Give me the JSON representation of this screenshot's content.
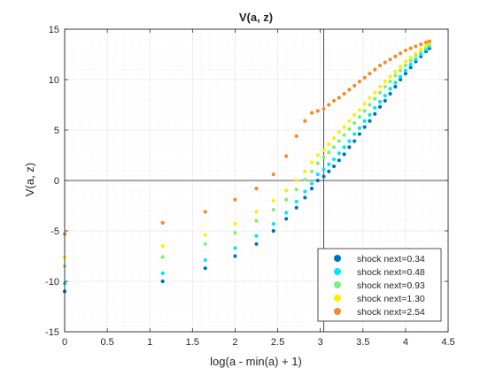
{
  "chart_data": {
    "type": "scatter",
    "title": "V(a, z)",
    "xlabel": "log(a - min(a) + 1)",
    "ylabel": "V(a, z)",
    "xlim": [
      0,
      4.5
    ],
    "ylim": [
      -15,
      15
    ],
    "x_ticks": [
      "0",
      "0.5",
      "1",
      "1.5",
      "2",
      "2.5",
      "3",
      "3.5",
      "4",
      "4.5"
    ],
    "y_ticks": [
      "-15",
      "-10",
      "-5",
      "0",
      "5",
      "10",
      "15"
    ],
    "grid": "major and minor (dotted)",
    "reference_lines": {
      "x": 3.04,
      "y": 0
    },
    "legend_placement": "bottom-right",
    "series": [
      {
        "name": "shock next=0.34",
        "color": "#0072BD",
        "points": [
          [
            0,
            -11.0
          ],
          [
            1.15,
            -10.0
          ],
          [
            1.65,
            -8.7
          ],
          [
            2.0,
            -7.5
          ],
          [
            2.25,
            -6.3
          ],
          [
            2.45,
            -5.0
          ],
          [
            2.6,
            -3.8
          ],
          [
            2.72,
            -2.7
          ],
          [
            2.82,
            -1.7
          ],
          [
            2.9,
            -0.8
          ],
          [
            2.97,
            0.0
          ],
          [
            3.04,
            0.4
          ],
          [
            3.1,
            0.9
          ],
          [
            3.16,
            1.4
          ],
          [
            3.22,
            2.0
          ],
          [
            3.28,
            2.6
          ],
          [
            3.34,
            3.3
          ],
          [
            3.4,
            3.9
          ],
          [
            3.46,
            4.6
          ],
          [
            3.52,
            5.3
          ],
          [
            3.58,
            5.9
          ],
          [
            3.64,
            6.6
          ],
          [
            3.7,
            7.3
          ],
          [
            3.76,
            7.9
          ],
          [
            3.82,
            8.6
          ],
          [
            3.88,
            9.3
          ],
          [
            3.94,
            10.0
          ],
          [
            4.0,
            10.6
          ],
          [
            4.06,
            11.2
          ],
          [
            4.12,
            11.8
          ],
          [
            4.18,
            12.3
          ],
          [
            4.24,
            12.8
          ],
          [
            4.28,
            13.1
          ]
        ]
      },
      {
        "name": "shock next=0.48",
        "color": "#00E5FF",
        "points": [
          [
            0,
            -10.2
          ],
          [
            1.15,
            -9.2
          ],
          [
            1.65,
            -7.9
          ],
          [
            2.0,
            -6.7
          ],
          [
            2.25,
            -5.5
          ],
          [
            2.45,
            -4.3
          ],
          [
            2.6,
            -3.2
          ],
          [
            2.72,
            -2.1
          ],
          [
            2.82,
            -1.1
          ],
          [
            2.9,
            -0.3
          ],
          [
            2.97,
            0.6
          ],
          [
            3.04,
            1.1
          ],
          [
            3.1,
            1.6
          ],
          [
            3.16,
            2.1
          ],
          [
            3.22,
            2.7
          ],
          [
            3.28,
            3.3
          ],
          [
            3.34,
            3.9
          ],
          [
            3.4,
            4.6
          ],
          [
            3.46,
            5.2
          ],
          [
            3.52,
            5.9
          ],
          [
            3.58,
            6.5
          ],
          [
            3.64,
            7.2
          ],
          [
            3.7,
            7.8
          ],
          [
            3.76,
            8.4
          ],
          [
            3.82,
            9.1
          ],
          [
            3.88,
            9.7
          ],
          [
            3.94,
            10.3
          ],
          [
            4.0,
            10.9
          ],
          [
            4.06,
            11.5
          ],
          [
            4.12,
            12.0
          ],
          [
            4.18,
            12.5
          ],
          [
            4.24,
            13.0
          ],
          [
            4.28,
            13.3
          ]
        ]
      },
      {
        "name": "shock next=0.93",
        "color": "#7CF07C",
        "points": [
          [
            0,
            -8.5
          ],
          [
            1.15,
            -7.6
          ],
          [
            1.65,
            -6.3
          ],
          [
            2.0,
            -5.2
          ],
          [
            2.25,
            -4.0
          ],
          [
            2.45,
            -2.9
          ],
          [
            2.6,
            -1.9
          ],
          [
            2.72,
            -0.9
          ],
          [
            2.82,
            0.1
          ],
          [
            2.9,
            0.9
          ],
          [
            2.97,
            1.7
          ],
          [
            3.04,
            2.3
          ],
          [
            3.1,
            2.8
          ],
          [
            3.16,
            3.3
          ],
          [
            3.22,
            3.9
          ],
          [
            3.28,
            4.5
          ],
          [
            3.34,
            5.1
          ],
          [
            3.4,
            5.7
          ],
          [
            3.46,
            6.3
          ],
          [
            3.52,
            6.9
          ],
          [
            3.58,
            7.5
          ],
          [
            3.64,
            8.1
          ],
          [
            3.7,
            8.7
          ],
          [
            3.76,
            9.3
          ],
          [
            3.82,
            9.8
          ],
          [
            3.88,
            10.4
          ],
          [
            3.94,
            10.9
          ],
          [
            4.0,
            11.4
          ],
          [
            4.06,
            11.9
          ],
          [
            4.12,
            12.4
          ],
          [
            4.18,
            12.8
          ],
          [
            4.24,
            13.2
          ],
          [
            4.28,
            13.5
          ]
        ]
      },
      {
        "name": "shock next=1.30",
        "color": "#FFEE00",
        "points": [
          [
            0,
            -7.6
          ],
          [
            1.15,
            -6.5
          ],
          [
            1.65,
            -5.4
          ],
          [
            2.0,
            -4.3
          ],
          [
            2.25,
            -3.1
          ],
          [
            2.45,
            -2.0
          ],
          [
            2.6,
            -1.0
          ],
          [
            2.72,
            0.0
          ],
          [
            2.82,
            0.9
          ],
          [
            2.9,
            1.8
          ],
          [
            2.97,
            2.5
          ],
          [
            3.04,
            3.0
          ],
          [
            3.1,
            3.6
          ],
          [
            3.16,
            4.2
          ],
          [
            3.22,
            4.8
          ],
          [
            3.28,
            5.3
          ],
          [
            3.34,
            5.9
          ],
          [
            3.4,
            6.5
          ],
          [
            3.46,
            7.0
          ],
          [
            3.52,
            7.6
          ],
          [
            3.58,
            8.2
          ],
          [
            3.64,
            8.7
          ],
          [
            3.7,
            9.3
          ],
          [
            3.76,
            9.8
          ],
          [
            3.82,
            10.3
          ],
          [
            3.88,
            10.8
          ],
          [
            3.94,
            11.3
          ],
          [
            4.0,
            11.8
          ],
          [
            4.06,
            12.2
          ],
          [
            4.12,
            12.6
          ],
          [
            4.18,
            13.0
          ],
          [
            4.24,
            13.4
          ],
          [
            4.28,
            13.6
          ]
        ]
      },
      {
        "name": "shock next=2.54",
        "color": "#F28C28",
        "points": [
          [
            0,
            -5.3
          ],
          [
            1.15,
            -4.2
          ],
          [
            1.65,
            -3.1
          ],
          [
            2.0,
            -1.9
          ],
          [
            2.25,
            -0.8
          ],
          [
            2.45,
            0.6
          ],
          [
            2.6,
            2.4
          ],
          [
            2.72,
            4.4
          ],
          [
            2.82,
            5.9
          ],
          [
            2.9,
            6.7
          ],
          [
            2.97,
            6.9
          ],
          [
            3.04,
            7.1
          ],
          [
            3.1,
            7.5
          ],
          [
            3.16,
            7.9
          ],
          [
            3.22,
            8.2
          ],
          [
            3.28,
            8.6
          ],
          [
            3.34,
            9.0
          ],
          [
            3.4,
            9.4
          ],
          [
            3.46,
            9.8
          ],
          [
            3.52,
            10.2
          ],
          [
            3.58,
            10.6
          ],
          [
            3.64,
            11.0
          ],
          [
            3.7,
            11.4
          ],
          [
            3.76,
            11.7
          ],
          [
            3.82,
            12.0
          ],
          [
            3.88,
            12.3
          ],
          [
            3.94,
            12.6
          ],
          [
            4.0,
            12.9
          ],
          [
            4.06,
            13.1
          ],
          [
            4.12,
            13.3
          ],
          [
            4.18,
            13.5
          ],
          [
            4.24,
            13.7
          ],
          [
            4.28,
            13.8
          ]
        ]
      }
    ]
  }
}
